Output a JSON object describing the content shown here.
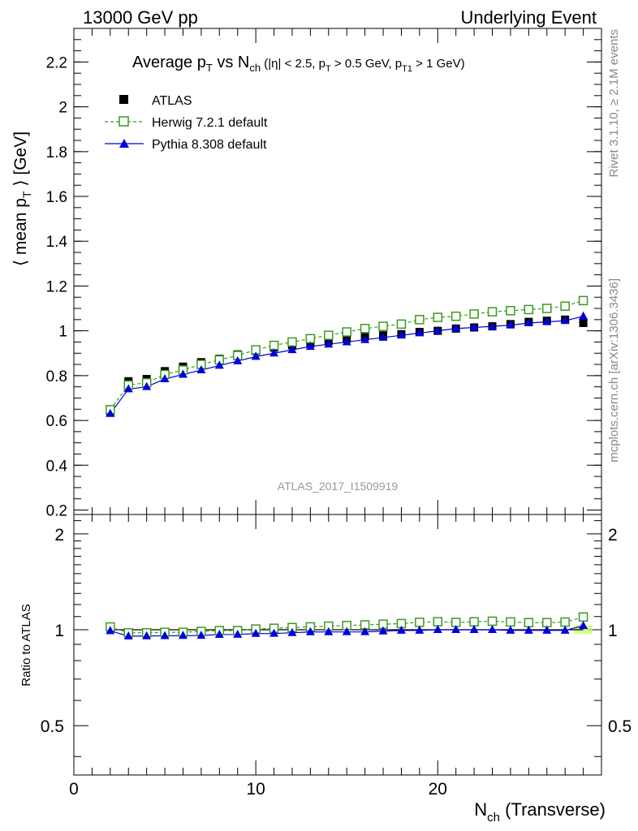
{
  "header": {
    "left": "13000 GeV pp",
    "right": "Underlying Event"
  },
  "side_labels": {
    "rivet": "Rivet 3.1.10, ≥ 2.1M events",
    "mcplots": "mcplots.cern.ch [arXiv:1306.3436]"
  },
  "title": {
    "main": "Average p",
    "sub_T": "T",
    "vs": " vs N",
    "sub_ch": "ch",
    "cuts_a": " (|η| < 2.5, p",
    "cuts_b": " > 0.5 GeV, p",
    "sub_T1": "T1",
    "cuts_c": " > 1 GeV)"
  },
  "analysis_id": "ATLAS_2017_I1509919",
  "colors": {
    "atlas": "#000000",
    "herwig": "#3a9a1e",
    "pythia": "#0000dd",
    "band": "#ccff66"
  },
  "chart_data": {
    "type": "line",
    "ylabel": "⟨ mean p_T ⟩ [GeV]",
    "ratio_ylabel": "Ratio to ATLAS",
    "xlabel": "N_ch (Transverse)",
    "xlim": [
      0,
      29
    ],
    "ylim": [
      0.18,
      2.35
    ],
    "ratio_ylim": [
      0.35,
      2.3
    ],
    "ratio_log": true,
    "x_ticks": [
      0,
      10,
      20
    ],
    "y_ticks": [
      0.2,
      0.4,
      0.6,
      0.8,
      1.0,
      1.2,
      1.4,
      1.6,
      1.8,
      2.0,
      2.2
    ],
    "y_tick_labels": [
      "0.2",
      "0.4",
      "0.6",
      "0.8",
      "1",
      "1.2",
      "1.4",
      "1.6",
      "1.8",
      "2",
      "2.2"
    ],
    "ratio_ticks": [
      0.5,
      1,
      2
    ],
    "ratio_tick_labels": [
      "0.5",
      "1",
      "2"
    ],
    "legend_position": "top-left",
    "x": [
      2,
      3,
      4,
      5,
      6,
      7,
      8,
      9,
      10,
      11,
      12,
      13,
      14,
      15,
      16,
      17,
      18,
      19,
      20,
      21,
      22,
      23,
      24,
      25,
      26,
      27,
      28
    ],
    "series": [
      {
        "name": "ATLAS",
        "marker": "filled-square",
        "values": [
          0.635,
          0.775,
          0.785,
          0.82,
          0.84,
          0.86,
          0.875,
          0.895,
          0.91,
          0.925,
          0.935,
          0.945,
          0.955,
          0.965,
          0.975,
          0.98,
          0.985,
          0.995,
          1.0,
          1.01,
          1.015,
          1.02,
          1.03,
          1.04,
          1.045,
          1.05,
          1.035
        ]
      },
      {
        "name": "Herwig 7.2.1 default",
        "marker": "open-square",
        "values": [
          0.648,
          0.758,
          0.768,
          0.805,
          0.825,
          0.85,
          0.87,
          0.89,
          0.915,
          0.935,
          0.95,
          0.965,
          0.98,
          0.995,
          1.01,
          1.02,
          1.03,
          1.05,
          1.06,
          1.065,
          1.075,
          1.085,
          1.09,
          1.095,
          1.1,
          1.11,
          1.135
        ]
      },
      {
        "name": "Pythia 8.308 default",
        "marker": "filled-triangle",
        "values": [
          0.63,
          0.74,
          0.75,
          0.785,
          0.805,
          0.825,
          0.845,
          0.865,
          0.885,
          0.9,
          0.915,
          0.93,
          0.94,
          0.95,
          0.96,
          0.97,
          0.98,
          0.99,
          1.0,
          1.01,
          1.015,
          1.02,
          1.025,
          1.035,
          1.04,
          1.045,
          1.065
        ]
      }
    ]
  }
}
